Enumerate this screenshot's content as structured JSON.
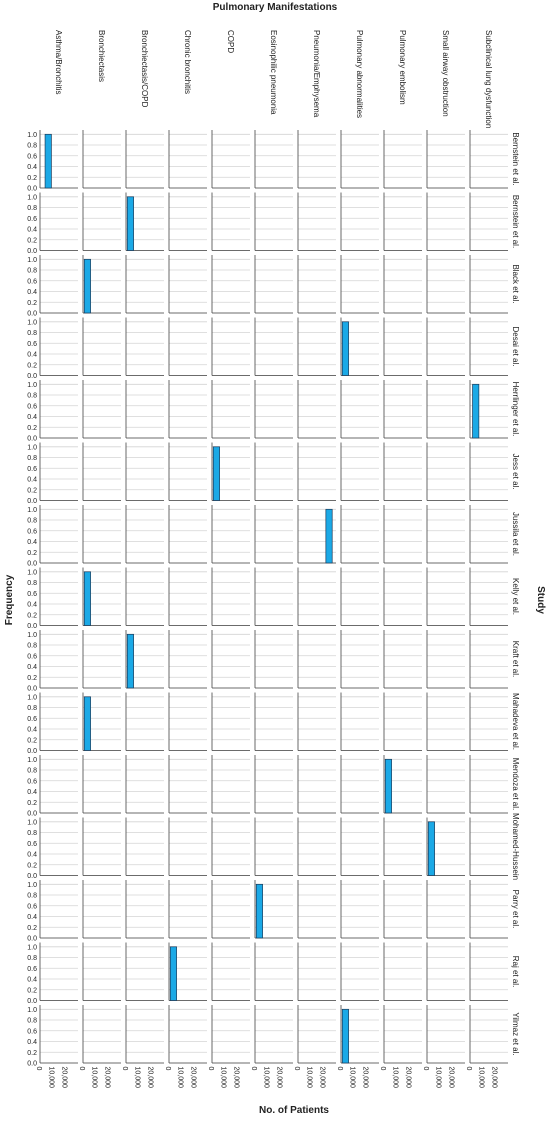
{
  "chart_data": {
    "type": "histogram-grid",
    "title": "Pulmonary Manifestations",
    "x_label": "No. of Patients",
    "y_label": "Frequency",
    "row_title": "Study",
    "columns": [
      "Asthma/Bronchitis",
      "Bronchiectasis",
      "Bronchiectasis/COPD",
      "Chronic bronchitis",
      "COPD",
      "Eosinophilic pneumonia",
      "Pneumonia/Emphysema",
      "Pulmonary abnormalities",
      "Pulmonary embolism",
      "Small airway obstruction",
      "Subclinical lung dysfunction"
    ],
    "rows": [
      {
        "name": "Bernstein et al.",
        "manifestation": "Asthma/Bronchitis",
        "bins": [
          4000,
          9000
        ],
        "values": [
          1.0
        ]
      },
      {
        "name": "Bernstein et al.",
        "manifestation": "Bronchiectasis/COPD",
        "bins": [
          1000,
          6000
        ],
        "values": [
          1.0
        ]
      },
      {
        "name": "Black et al.",
        "manifestation": "Bronchiectasis",
        "bins": [
          1000,
          6000
        ],
        "values": [
          1.0
        ]
      },
      {
        "name": "Desai et al.",
        "manifestation": "Pulmonary abnormalities",
        "bins": [
          1000,
          6000
        ],
        "values": [
          1.0
        ]
      },
      {
        "name": "Herrlinger et al.",
        "manifestation": "Subclinical lung dysfunction",
        "bins": [
          2000,
          7000
        ],
        "values": [
          1.0
        ]
      },
      {
        "name": "Jess et al.",
        "manifestation": "COPD",
        "bins": [
          1000,
          6000
        ],
        "values": [
          1.0
        ]
      },
      {
        "name": "Jussila et al.",
        "manifestation": "Pneumonia/Emphysema",
        "bins": [
          22000,
          27000
        ],
        "values": [
          1.0
        ]
      },
      {
        "name": "Kelly et al.",
        "manifestation": "Bronchiectasis",
        "bins": [
          1000,
          6000
        ],
        "values": [
          1.0
        ]
      },
      {
        "name": "Kraft et al.",
        "manifestation": "Bronchiectasis/COPD",
        "bins": [
          1000,
          6000
        ],
        "values": [
          1.0
        ]
      },
      {
        "name": "Mahadeva et al.",
        "manifestation": "Bronchiectasis",
        "bins": [
          1000,
          6000
        ],
        "values": [
          1.0
        ]
      },
      {
        "name": "Mendoza et al.",
        "manifestation": "Pulmonary embolism",
        "bins": [
          1000,
          6000
        ],
        "values": [
          1.0
        ]
      },
      {
        "name": "Mohamed-Hussein",
        "manifestation": "Small airway obstruction",
        "bins": [
          1000,
          6000
        ],
        "values": [
          1.0
        ]
      },
      {
        "name": "Parry et al.",
        "manifestation": "Eosinophilic pneumonia",
        "bins": [
          1000,
          6000
        ],
        "values": [
          1.0
        ]
      },
      {
        "name": "Raj et al.",
        "manifestation": "Chronic bronchitis",
        "bins": [
          1000,
          6000
        ],
        "values": [
          1.0
        ]
      },
      {
        "name": "Yilmaz et al.",
        "manifestation": "Pulmonary abnormalities",
        "bins": [
          1000,
          6000
        ],
        "values": [
          1.0
        ]
      }
    ],
    "color": "#1ba9e6",
    "xlim": [
      0,
      30000
    ],
    "xticks": [
      0,
      {
        "value": 10000,
        "label": "10,000"
      },
      {
        "value": 20000,
        "label": "20,000"
      }
    ],
    "ylim": [
      0,
      1.08
    ],
    "yticks": [
      {
        "value": 0,
        "label": "0.0"
      },
      {
        "value": 0.2,
        "label": "0.2"
      },
      {
        "value": 0.4,
        "label": "0.4"
      },
      {
        "value": 0.6,
        "label": "0.6"
      },
      {
        "value": 0.8,
        "label": "0.8"
      },
      {
        "value": 1.0,
        "label": "1.0"
      }
    ],
    "grid": true
  }
}
